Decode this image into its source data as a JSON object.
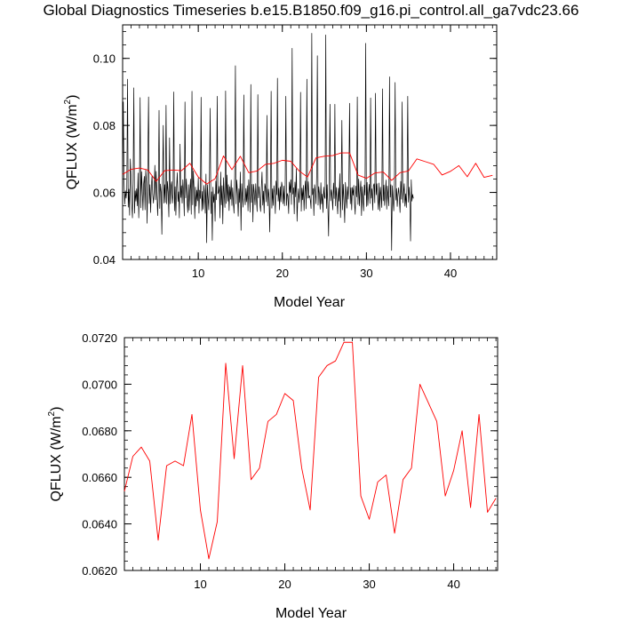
{
  "title": "Global Diagnostics Timeseries b.e15.B1850.f09_g16.pi_control.all_ga7vdc23.66",
  "colors": {
    "monthly": "#000000",
    "annual": "#ff0000",
    "axes": "#000000"
  },
  "chart_data": [
    {
      "type": "line",
      "panel": "top",
      "title": "",
      "xlabel": "Model Year",
      "ylabel_main": "QFLUX (W/m",
      "ylabel_sup": "2",
      "ylabel_close": ")",
      "xlim": [
        1,
        45.5
      ],
      "ylim": [
        0.04,
        0.11
      ],
      "xticks": [
        10,
        20,
        30,
        40
      ],
      "xtick_labels": [
        "10",
        "20",
        "30",
        "40"
      ],
      "yticks": [
        0.04,
        0.06,
        0.08,
        0.1
      ],
      "ytick_labels": [
        "0.04",
        "0.06",
        "0.08",
        "0.10"
      ],
      "grid": false,
      "series": [
        {
          "color": "#000000",
          "style": "monthly",
          "x_start": 1.0,
          "x_step": 0.0833333,
          "values": [
            0.059,
            0.087,
            0.0635,
            0.0565,
            0.0605,
            0.0583,
            0.0612,
            0.0938,
            0.0556,
            0.061,
            0.0532,
            0.07,
            0.0645,
            0.0568,
            0.0524,
            0.064,
            0.0912,
            0.0538,
            0.0605,
            0.0574,
            0.0611,
            0.056,
            0.0658,
            0.0524,
            0.0611,
            0.0883,
            0.0554,
            0.0662,
            0.061,
            0.0547,
            0.0625,
            0.0648,
            0.0548,
            0.0667,
            0.063,
            0.0508,
            0.069,
            0.0885,
            0.0567,
            0.0623,
            0.054,
            0.0617,
            0.065,
            0.0594,
            0.0568,
            0.0605,
            0.0681,
            0.0578,
            0.0663,
            0.0595,
            0.0531,
            0.0605,
            0.0845,
            0.0552,
            0.0625,
            0.0601,
            0.0475,
            0.0639,
            0.08,
            0.0568,
            0.0623,
            0.057,
            0.086,
            0.0566,
            0.0633,
            0.0602,
            0.0527,
            0.0763,
            0.0566,
            0.0617,
            0.0632,
            0.0568,
            0.0594,
            0.09,
            0.0545,
            0.0617,
            0.0532,
            0.0612,
            0.0659,
            0.0573,
            0.0602,
            0.0524,
            0.0744,
            0.0585,
            0.062,
            0.0568,
            0.0638,
            0.0601,
            0.053,
            0.087,
            0.0584,
            0.064,
            0.0574,
            0.054,
            0.0623,
            0.0547,
            0.0608,
            0.064,
            0.0535,
            0.0902,
            0.0563,
            0.0664,
            0.0607,
            0.0522,
            0.0616,
            0.0559,
            0.0607,
            0.0575,
            0.0643,
            0.0538,
            0.0607,
            0.0582,
            0.0884,
            0.0545,
            0.0603,
            0.055,
            0.0621,
            0.0597,
            0.0538,
            0.0655,
            0.045,
            0.0623,
            0.0584,
            0.0548,
            0.0648,
            0.0851,
            0.0537,
            0.0602,
            0.0457,
            0.0616,
            0.057,
            0.0595,
            0.0514,
            0.0634,
            0.0578,
            0.0887,
            0.0596,
            0.0601,
            0.0618,
            0.0524,
            0.0661,
            0.0563,
            0.062,
            0.0506,
            0.0644,
            0.0594,
            0.0555,
            0.0903,
            0.0567,
            0.0652,
            0.0574,
            0.0623,
            0.0546,
            0.0617,
            0.058,
            0.0637,
            0.0561,
            0.0614,
            0.0571,
            0.0538,
            0.0653,
            0.0978,
            0.0566,
            0.0637,
            0.0596,
            0.0529,
            0.0611,
            0.057,
            0.0661,
            0.0487,
            0.0626,
            0.0584,
            0.0556,
            0.0891,
            0.0589,
            0.0563,
            0.0612,
            0.0572,
            0.062,
            0.0545,
            0.0638,
            0.0595,
            0.0541,
            0.0922,
            0.057,
            0.0624,
            0.0512,
            0.0624,
            0.0597,
            0.0563,
            0.0626,
            0.0581,
            0.0543,
            0.0892,
            0.0584,
            0.0617,
            0.0565,
            0.0543,
            0.0614,
            0.0661,
            0.0562,
            0.0604,
            0.0538,
            0.0626,
            0.0614,
            0.0572,
            0.083,
            0.056,
            0.061,
            0.0585,
            0.0482,
            0.0628,
            0.0902,
            0.0553,
            0.0611,
            0.0561,
            0.062,
            0.0597,
            0.0537,
            0.0634,
            0.0593,
            0.0941,
            0.0574,
            0.0613,
            0.0548,
            0.0617,
            0.0572,
            0.0631,
            0.0616,
            0.0566,
            0.0619,
            0.056,
            0.0605,
            0.0887,
            0.0561,
            0.0597,
            0.059,
            0.0537,
            0.0631,
            0.06,
            0.0638,
            0.0564,
            0.103,
            0.0595,
            0.0614,
            0.0536,
            0.0631,
            0.0587,
            0.0671,
            0.0514,
            0.058,
            0.0611,
            0.057,
            0.0603,
            0.0899,
            0.0544,
            0.0613,
            0.0578,
            0.0621,
            0.0546,
            0.0602,
            0.0634,
            0.0551,
            0.0938,
            0.0583,
            0.0632,
            0.0584,
            0.059,
            0.0576,
            0.0552,
            0.1075,
            0.0593,
            0.0612,
            0.0531,
            0.0623,
            0.0602,
            0.0566,
            0.065,
            0.1008,
            0.0562,
            0.0617,
            0.0592,
            0.055,
            0.0629,
            0.0566,
            0.0595,
            0.054,
            0.0616,
            0.0588,
            0.0582,
            0.107,
            0.0552,
            0.0623,
            0.0557,
            0.047,
            0.0641,
            0.0863,
            0.0575,
            0.0608,
            0.0588,
            0.0548,
            0.0628,
            0.0582,
            0.0863,
            0.056,
            0.0615,
            0.0575,
            0.0536,
            0.0613,
            0.0574,
            0.0656,
            0.0525,
            0.06,
            0.0815,
            0.0548,
            0.0624,
            0.0577,
            0.051,
            0.063,
            0.0592,
            0.0553,
            0.0617,
            0.058,
            0.0648,
            0.0866,
            0.0566,
            0.0614,
            0.0548,
            0.0615,
            0.0592,
            0.0621,
            0.0568,
            0.0535,
            0.0619,
            0.0587,
            0.0885,
            0.0564,
            0.064,
            0.056,
            0.0602,
            0.0634,
            0.0531,
            0.0617,
            0.058,
            0.0545,
            0.0622,
            0.0592,
            0.1045,
            0.0558,
            0.063,
            0.0561,
            0.0598,
            0.0624,
            0.0567,
            0.0882,
            0.0583,
            0.0611,
            0.0547,
            0.062,
            0.0626,
            0.0569,
            0.0896,
            0.0593,
            0.0626,
            0.0585,
            0.0549,
            0.0628,
            0.0545,
            0.0616,
            0.0588,
            0.0555,
            0.0909,
            0.0575,
            0.0622,
            0.0561,
            0.0598,
            0.0637,
            0.055,
            0.0619,
            0.0588,
            0.056,
            0.0945,
            0.0586,
            0.0623,
            0.0427,
            0.062,
            0.0581,
            0.0545,
            0.0628,
            0.0928,
            0.0577,
            0.0612,
            0.0558,
            0.0593,
            0.0614,
            0.0581,
            0.054,
            0.0633,
            0.058,
            0.087,
            0.0569,
            0.06,
            0.0626,
            0.0559,
            0.0596,
            0.0555,
            0.0622,
            0.0887,
            0.0571,
            0.0616,
            0.0568,
            0.0455,
            0.0638,
            0.0574,
            0.0594,
            0.0582
          ]
        },
        {
          "color": "#ff0000",
          "style": "annual",
          "x": [
            1,
            2,
            3,
            4,
            5,
            6,
            7,
            8,
            9,
            10,
            11,
            12,
            13,
            14,
            15,
            16,
            17,
            18,
            19,
            20,
            21,
            22,
            23,
            24,
            25,
            26,
            27,
            28,
            29,
            30,
            31,
            32,
            33,
            34,
            35,
            36,
            37,
            38,
            39,
            40,
            41,
            42,
            43,
            44,
            45
          ],
          "values": [
            0.0654,
            0.0669,
            0.0673,
            0.0667,
            0.0633,
            0.0665,
            0.0667,
            0.0665,
            0.0687,
            0.0646,
            0.0625,
            0.0641,
            0.0709,
            0.0668,
            0.0708,
            0.0659,
            0.0664,
            0.0684,
            0.0687,
            0.0696,
            0.0693,
            0.0664,
            0.0646,
            0.0703,
            0.0708,
            0.071,
            0.0718,
            0.0718,
            0.0652,
            0.0642,
            0.0658,
            0.0661,
            0.0636,
            0.0659,
            0.0664,
            0.07,
            0.0692,
            0.0684,
            0.0652,
            0.0663,
            0.068,
            0.0647,
            0.0687,
            0.0645,
            0.0651
          ]
        }
      ]
    },
    {
      "type": "line",
      "panel": "bottom",
      "title": "",
      "xlabel": "Model Year",
      "ylabel_main": "QFLUX (W/m",
      "ylabel_sup": "2",
      "ylabel_close": ")",
      "xlim": [
        1,
        45.2
      ],
      "ylim": [
        0.062,
        0.072
      ],
      "xticks": [
        10,
        20,
        30,
        40
      ],
      "xtick_labels": [
        "10",
        "20",
        "30",
        "40"
      ],
      "yticks": [
        0.062,
        0.064,
        0.066,
        0.068,
        0.07,
        0.072
      ],
      "ytick_labels": [
        "0.0620",
        "0.0640",
        "0.0660",
        "0.0680",
        "0.0700",
        "0.0720"
      ],
      "grid": false,
      "series": [
        {
          "color": "#ff0000",
          "style": "annual",
          "x": [
            1,
            2,
            3,
            4,
            5,
            6,
            7,
            8,
            9,
            10,
            11,
            12,
            13,
            14,
            15,
            16,
            17,
            18,
            19,
            20,
            21,
            22,
            23,
            24,
            25,
            26,
            27,
            28,
            29,
            30,
            31,
            32,
            33,
            34,
            35,
            36,
            37,
            38,
            39,
            40,
            41,
            42,
            43,
            44,
            45
          ],
          "values": [
            0.0654,
            0.0669,
            0.0673,
            0.0667,
            0.0633,
            0.0665,
            0.0667,
            0.0665,
            0.0687,
            0.0646,
            0.0625,
            0.0641,
            0.0709,
            0.0668,
            0.0708,
            0.0659,
            0.0664,
            0.0684,
            0.0687,
            0.0696,
            0.0693,
            0.0664,
            0.0646,
            0.0703,
            0.0708,
            0.071,
            0.0718,
            0.0718,
            0.0652,
            0.0642,
            0.0658,
            0.0661,
            0.0636,
            0.0659,
            0.0664,
            0.07,
            0.0692,
            0.0684,
            0.0652,
            0.0663,
            0.068,
            0.0647,
            0.0687,
            0.0645,
            0.0651
          ]
        }
      ]
    }
  ]
}
